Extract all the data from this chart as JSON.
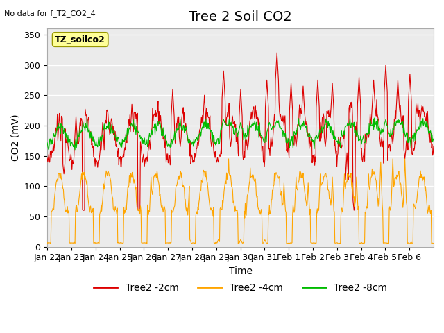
{
  "title": "Tree 2 Soil CO2",
  "no_data_text": "No data for f_T2_CO2_4",
  "ylabel": "CO2 (mV)",
  "xlabel": "Time",
  "ylim": [
    0,
    360
  ],
  "yticks": [
    0,
    50,
    100,
    150,
    200,
    250,
    300,
    350
  ],
  "legend_label": "TZ_soilco2",
  "series_labels": [
    "Tree2 -2cm",
    "Tree2 -4cm",
    "Tree2 -8cm"
  ],
  "series_colors": [
    "#dd0000",
    "#ffa500",
    "#00bb00"
  ],
  "x_tick_labels": [
    "Jan 22",
    "Jan 23",
    "Jan 24",
    "Jan 25",
    "Jan 26",
    "Jan 27",
    "Jan 28",
    "Jan 29",
    "Jan 30",
    "Jan 31",
    "Feb 1",
    "Feb 2",
    "Feb 3",
    "Feb 4",
    "Feb 5",
    "Feb 6"
  ],
  "background_color": "#ffffff",
  "plot_bg_color": "#ebebeb",
  "grid_color": "#ffffff",
  "title_fontsize": 14,
  "label_fontsize": 10,
  "tick_fontsize": 9
}
